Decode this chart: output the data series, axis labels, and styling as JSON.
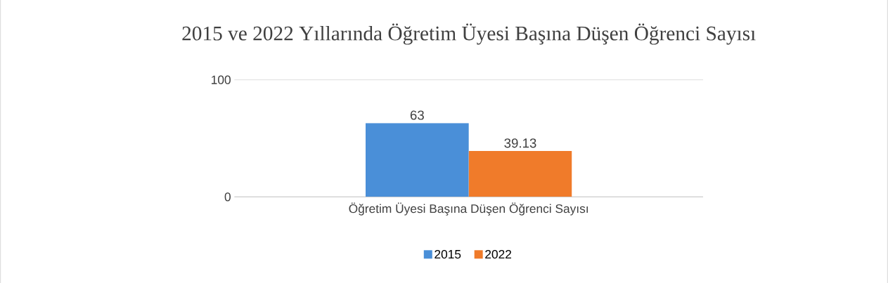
{
  "chart_data": {
    "type": "bar",
    "title": "2015 ve 2022 Yıllarında Öğretim Üyesi Başına Düşen Öğrenci Sayısı",
    "categories": [
      "Öğretim Üyesi Başına Düşen Öğrenci Sayısı"
    ],
    "series": [
      {
        "name": "2015",
        "color": "#4a8fd8",
        "values": [
          63
        ]
      },
      {
        "name": "2022",
        "color": "#f07b2a",
        "values": [
          39.13
        ]
      }
    ],
    "ylim": [
      0,
      100
    ],
    "yticks": [
      0,
      100
    ],
    "grid": "y",
    "data_labels": true,
    "legend": "bottom"
  }
}
